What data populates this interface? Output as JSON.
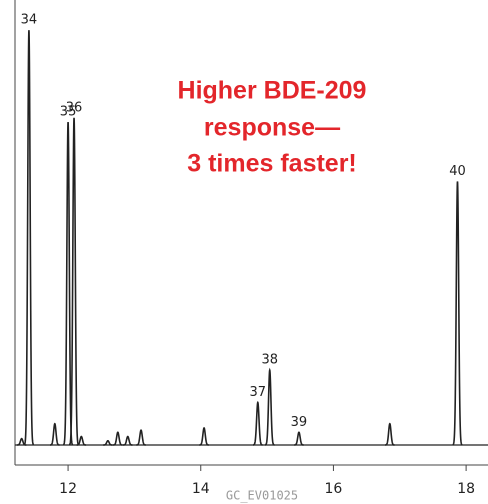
{
  "chart_data": {
    "type": "chromatogram",
    "annotation": [
      "Higher BDE-209",
      "response—",
      "3 times faster!"
    ],
    "footer": "GC_EV01025",
    "x": [
      11.3,
      11.41,
      11.8,
      12.0,
      12.09,
      12.2,
      12.6,
      12.75,
      12.9,
      13.1,
      14.05,
      14.86,
      15.04,
      15.48,
      16.85,
      17.87
    ],
    "values": [
      1.5,
      97.6,
      5,
      76,
      77,
      2,
      1,
      3,
      2,
      3.5,
      4,
      10,
      17.6,
      3,
      5,
      62
    ],
    "labels": [
      null,
      "34",
      null,
      "35",
      "36",
      null,
      null,
      null,
      null,
      null,
      null,
      "37",
      "38",
      "39",
      null,
      "40"
    ],
    "xlim": [
      11.2,
      18.33
    ],
    "xticks": [
      12,
      14,
      16,
      18
    ],
    "ylim": [
      0,
      100
    ],
    "color": "#222"
  }
}
